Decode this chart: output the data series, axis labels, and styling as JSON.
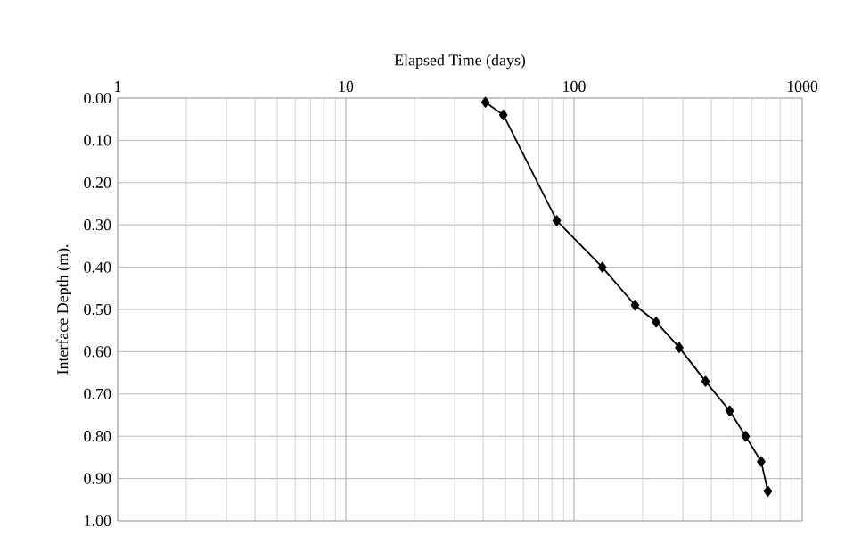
{
  "chart_data": {
    "type": "line",
    "xlabel": "Elapsed Time (days)",
    "ylabel": "Interface Depth (m).",
    "x": [
      40.9,
      49,
      84,
      133,
      185,
      229,
      289,
      377,
      481,
      565,
      661,
      707
    ],
    "series": [
      {
        "color": "#000000",
        "values": [
          0.01,
          0.04,
          0.29,
          0.4,
          0.49,
          0.53,
          0.59,
          0.67,
          0.74,
          0.8,
          0.86,
          0.93
        ]
      }
    ],
    "log": "x",
    "xlim": [
      1,
      1000
    ],
    "xticks": [
      1,
      10,
      100,
      1000
    ],
    "ylim": [
      1.0,
      0.0
    ],
    "yticks": [
      {
        "value": 0,
        "label": "0.00"
      },
      {
        "value": 0.1,
        "label": "0.10"
      },
      {
        "value": 0.2,
        "label": "0.20"
      },
      {
        "value": 0.3,
        "label": "0.30"
      },
      {
        "value": 0.4,
        "label": "0.40"
      },
      {
        "value": 0.5,
        "label": "0.50"
      },
      {
        "value": 0.6,
        "label": "0.60"
      },
      {
        "value": 0.7,
        "label": "0.70"
      },
      {
        "value": 0.8,
        "label": "0.80"
      },
      {
        "value": 0.9,
        "label": "0.90"
      },
      {
        "value": 1.0,
        "label": "1.00"
      }
    ],
    "grid": true,
    "marker": "diamond",
    "line_style": "solid"
  }
}
